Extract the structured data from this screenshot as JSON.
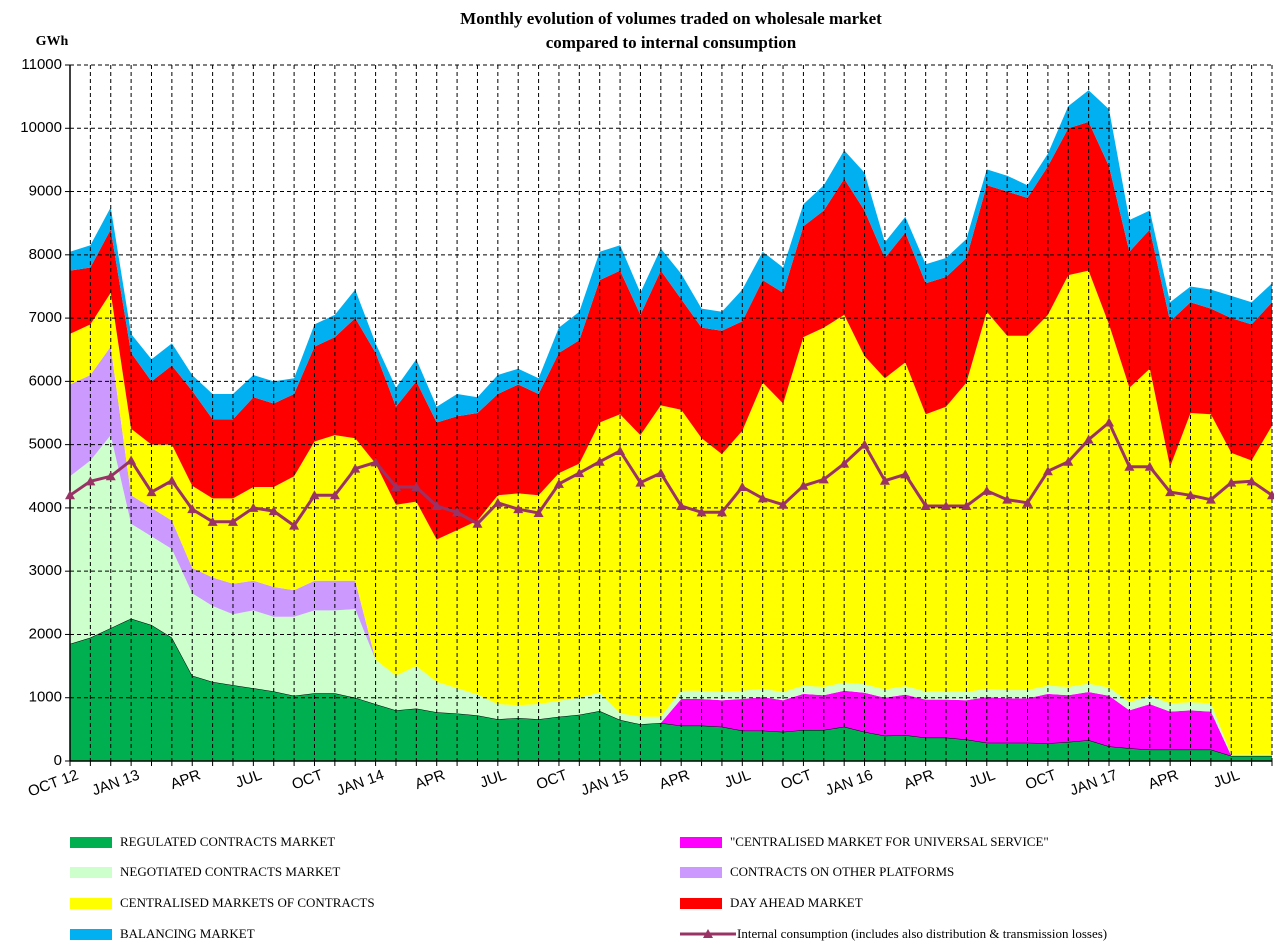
{
  "chart_data": {
    "type": "stacked-area",
    "title": [
      "Monthly evolution of volumes traded on wholesale market",
      "compared to internal consumption"
    ],
    "ylabel": "GWh",
    "categories": [
      "OCT 12",
      null,
      null,
      "JAN 13",
      null,
      null,
      "APR",
      null,
      null,
      "JUL",
      null,
      null,
      "OCT",
      null,
      null,
      "JAN 14",
      null,
      null,
      "APR",
      null,
      null,
      "JUL",
      null,
      null,
      "OCT",
      null,
      null,
      "JAN 15",
      null,
      null,
      "APR",
      null,
      null,
      "JUL",
      null,
      null,
      "OCT",
      null,
      null,
      "JAN 16",
      null,
      null,
      "APR",
      null,
      null,
      "JUL",
      null,
      null,
      "OCT",
      null,
      null,
      "JAN 17",
      null,
      null,
      "APR",
      null,
      null,
      "JUL",
      null,
      null
    ],
    "ylim": [
      0,
      11000
    ],
    "yticks": [
      0,
      1000,
      2000,
      3000,
      4000,
      5000,
      6000,
      7000,
      8000,
      9000,
      10000,
      11000
    ],
    "grid": true,
    "series": [
      {
        "name": "REGULATED CONTRACTS MARKET",
        "color": "#00b050",
        "values": [
          1850,
          1950,
          2100,
          2250,
          2150,
          1950,
          1350,
          1250,
          1200,
          1150,
          1100,
          1030,
          1070,
          1070,
          1000,
          900,
          800,
          830,
          770,
          750,
          720,
          660,
          680,
          660,
          700,
          730,
          790,
          650,
          580,
          600,
          560,
          560,
          540,
          480,
          480,
          460,
          490,
          490,
          540,
          460,
          400,
          410,
          370,
          370,
          340,
          290,
          290,
          290,
          280,
          300,
          330,
          230,
          200,
          180,
          180,
          180,
          180,
          80,
          80,
          80
        ]
      },
      {
        "name": "\"CENTRALISED MARKET FOR UNIVERSAL SERVICE\"",
        "color": "#ff00ff",
        "values": [
          0,
          0,
          0,
          0,
          0,
          0,
          0,
          0,
          0,
          0,
          0,
          0,
          0,
          0,
          0,
          0,
          0,
          0,
          0,
          0,
          0,
          0,
          0,
          0,
          0,
          0,
          0,
          0,
          0,
          0,
          420,
          420,
          420,
          500,
          530,
          500,
          570,
          550,
          570,
          620,
          600,
          640,
          600,
          600,
          620,
          720,
          700,
          700,
          780,
          740,
          760,
          800,
          600,
          720,
          600,
          620,
          600,
          0,
          0,
          0
        ]
      },
      {
        "name": "NEGOTIATED CONTRACTS MARKET",
        "color": "#ccffcc",
        "values": [
          2650,
          2800,
          3050,
          1500,
          1400,
          1400,
          1300,
          1200,
          1120,
          1230,
          1180,
          1250,
          1310,
          1310,
          1400,
          700,
          550,
          670,
          480,
          400,
          330,
          240,
          200,
          240,
          250,
          270,
          290,
          100,
          120,
          100,
          130,
          130,
          130,
          130,
          130,
          130,
          130,
          130,
          130,
          130,
          130,
          130,
          130,
          130,
          130,
          130,
          130,
          130,
          130,
          130,
          130,
          130,
          130,
          130,
          130,
          130,
          130,
          20,
          20,
          20
        ]
      },
      {
        "name": "CONTRACTS ON OTHER PLATFORMS",
        "color": "#cc99ff",
        "values": [
          1450,
          1350,
          1400,
          450,
          450,
          450,
          400,
          450,
          480,
          470,
          470,
          420,
          470,
          470,
          450,
          0,
          0,
          0,
          0,
          0,
          0,
          0,
          0,
          0,
          0,
          0,
          0,
          0,
          0,
          0,
          0,
          0,
          0,
          0,
          0,
          0,
          0,
          0,
          0,
          0,
          0,
          0,
          0,
          0,
          0,
          0,
          0,
          0,
          0,
          0,
          0,
          0,
          0,
          0,
          0,
          0,
          0,
          0,
          0,
          0
        ]
      },
      {
        "name": "CENTRALISED MARKETS OF CONTRACTS",
        "color": "#ffff00",
        "values": [
          800,
          800,
          850,
          1050,
          1000,
          1200,
          1300,
          1250,
          1350,
          1480,
          1580,
          1800,
          2200,
          2300,
          2250,
          3100,
          2700,
          2600,
          2250,
          2500,
          2750,
          3300,
          3350,
          3300,
          3600,
          3700,
          4270,
          4730,
          4450,
          4920,
          4440,
          3990,
          3760,
          4110,
          4840,
          4560,
          5510,
          5680,
          5810,
          5190,
          4920,
          5120,
          4380,
          4500,
          4890,
          5960,
          5600,
          5600,
          5860,
          6510,
          6530,
          5740,
          4970,
          5170,
          3740,
          4570,
          4570,
          4770,
          4650,
          5200
        ]
      },
      {
        "name": "DAY AHEAD MARKET",
        "color": "#ff0000",
        "values": [
          1000,
          900,
          1000,
          1200,
          1000,
          1250,
          1500,
          1250,
          1250,
          1420,
          1320,
          1300,
          1500,
          1550,
          1900,
          1750,
          1550,
          1900,
          1850,
          1800,
          1700,
          1600,
          1720,
          1600,
          1900,
          1950,
          2250,
          2270,
          1900,
          2130,
          1750,
          1750,
          1950,
          1730,
          1620,
          1750,
          1750,
          1850,
          2150,
          2300,
          1900,
          2050,
          2070,
          2050,
          1970,
          2000,
          2280,
          2180,
          2350,
          2320,
          2350,
          2500,
          2150,
          2200,
          2300,
          1750,
          1670,
          2130,
          2150,
          1950
        ]
      },
      {
        "name": "BALANCING MARKET",
        "color": "#00b0f0",
        "values": [
          300,
          350,
          350,
          300,
          350,
          350,
          250,
          400,
          400,
          350,
          350,
          250,
          350,
          350,
          450,
          150,
          300,
          350,
          250,
          350,
          250,
          300,
          250,
          250,
          400,
          450,
          450,
          400,
          350,
          350,
          400,
          300,
          300,
          500,
          450,
          400,
          350,
          400,
          450,
          600,
          250,
          250,
          300,
          300,
          300,
          250,
          250,
          200,
          200,
          350,
          500,
          900,
          500,
          300,
          300,
          250,
          300,
          350,
          350,
          300
        ]
      }
    ],
    "line": {
      "name": "Internal consumption (includes also distribution & transmission losses)",
      "color": "#993366",
      "values": [
        4200,
        4420,
        4500,
        4750,
        4250,
        4430,
        3980,
        3780,
        3780,
        4000,
        3950,
        3720,
        4200,
        4200,
        4620,
        4720,
        4330,
        4330,
        4030,
        3930,
        3750,
        4080,
        3980,
        3920,
        4380,
        4550,
        4730,
        4900,
        4400,
        4550,
        4030,
        3930,
        3930,
        4330,
        4150,
        4050,
        4350,
        4450,
        4700,
        5000,
        4430,
        4530,
        4030,
        4030,
        4030,
        4270,
        4130,
        4080,
        4580,
        4730,
        5080,
        5350,
        4650,
        4650,
        4250,
        4200,
        4130,
        4400,
        4420,
        4200
      ]
    }
  }
}
